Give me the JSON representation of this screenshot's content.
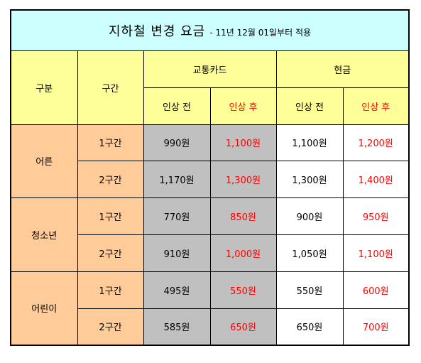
{
  "title": {
    "main": "지하철 변경 요금",
    "sub": "- 11년 12월 01일부터 적용"
  },
  "headers": {
    "category": "구분",
    "section": "구간",
    "card": "교통카드",
    "cash": "현금",
    "before": "인상 전",
    "after": "인상 후"
  },
  "groups": [
    {
      "label": "어른",
      "rows": [
        {
          "section": "1구간",
          "card_before": "990원",
          "card_after": "1,100원",
          "cash_before": "1,100원",
          "cash_after": "1,200원"
        },
        {
          "section": "2구간",
          "card_before": "1,170원",
          "card_after": "1,300원",
          "cash_before": "1,300원",
          "cash_after": "1,400원"
        }
      ]
    },
    {
      "label": "청소년",
      "rows": [
        {
          "section": "1구간",
          "card_before": "770원",
          "card_after": "850원",
          "cash_before": "900원",
          "cash_after": "950원"
        },
        {
          "section": "2구간",
          "card_before": "910원",
          "card_after": "1,000원",
          "cash_before": "1,050원",
          "cash_after": "1,100원"
        }
      ]
    },
    {
      "label": "어린이",
      "rows": [
        {
          "section": "1구간",
          "card_before": "495원",
          "card_after": "550원",
          "cash_before": "550원",
          "cash_after": "600원"
        },
        {
          "section": "2구간",
          "card_before": "585원",
          "card_after": "650원",
          "cash_before": "650원",
          "cash_after": "700원"
        }
      ]
    }
  ],
  "colors": {
    "title_bg": "#ccffff",
    "header_bg": "#ffff99",
    "category_bg": "#ffcc99",
    "card_value_bg": "#c0c0c0",
    "after_text": "#ff0000"
  }
}
